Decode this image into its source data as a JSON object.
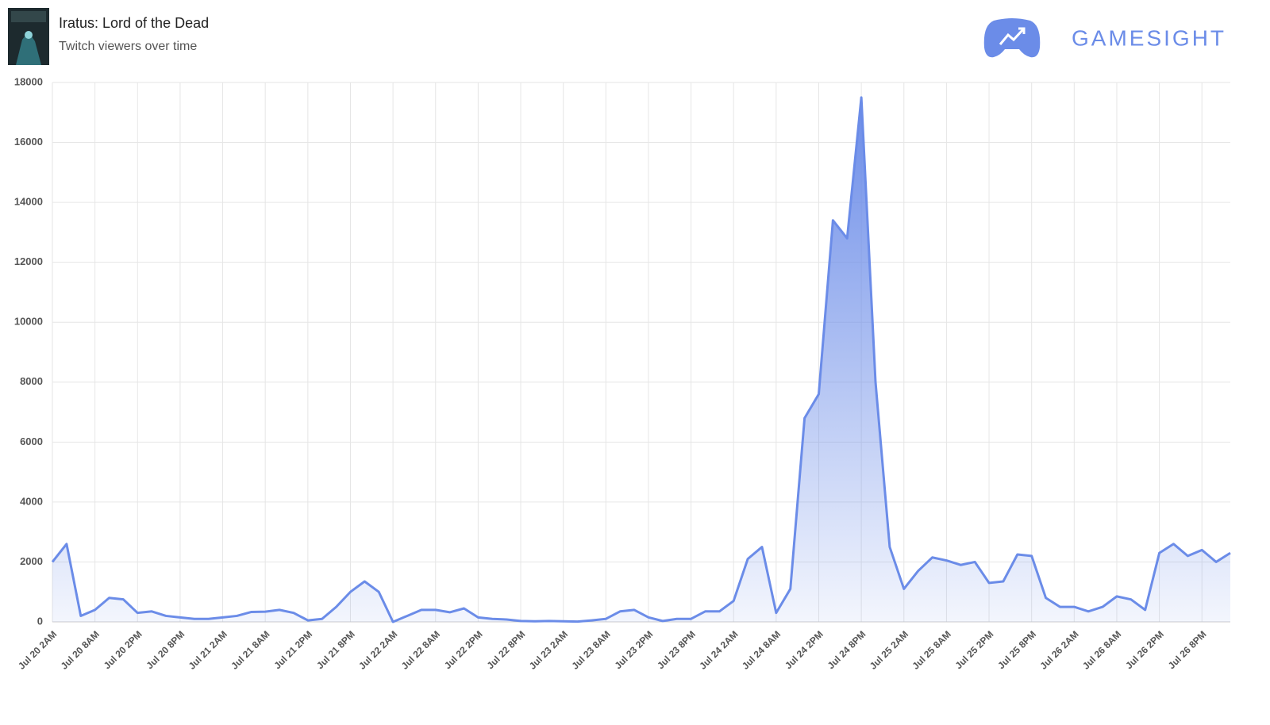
{
  "brand": "GAMESIGHT",
  "chart_data": {
    "type": "area",
    "title": "Iratus: Lord of the Dead",
    "subtitle": "Twitch viewers over time",
    "categories": [
      "Jul 20 2AM",
      null,
      null,
      "Jul 20 8AM",
      null,
      null,
      "Jul 20 2PM",
      null,
      null,
      "Jul 20 8PM",
      null,
      null,
      "Jul 21 2AM",
      null,
      null,
      "Jul 21 8AM",
      null,
      null,
      "Jul 21 2PM",
      null,
      null,
      "Jul 21 8PM",
      null,
      null,
      "Jul 22 2AM",
      null,
      null,
      "Jul 22 8AM",
      null,
      null,
      "Jul 22 2PM",
      null,
      null,
      "Jul 22 8PM",
      null,
      null,
      "Jul 23 2AM",
      null,
      null,
      "Jul 23 8AM",
      null,
      null,
      "Jul 23 2PM",
      null,
      null,
      "Jul 23 8PM",
      null,
      null,
      "Jul 24 2AM",
      null,
      null,
      "Jul 24 8AM",
      null,
      null,
      "Jul 24 2PM",
      null,
      null,
      "Jul 24 8PM",
      null,
      null,
      "Jul 25 2AM",
      null,
      null,
      "Jul 25 8AM",
      null,
      null,
      "Jul 25 2PM",
      null,
      null,
      "Jul 25 8PM",
      null,
      null,
      "Jul 26 2AM",
      null,
      null,
      "Jul 26 8AM",
      null,
      null,
      "Jul 26 2PM",
      null,
      null,
      "Jul 26 8PM",
      null,
      null
    ],
    "values": [
      2000,
      2600,
      200,
      400,
      800,
      750,
      300,
      350,
      200,
      150,
      100,
      100,
      150,
      200,
      330,
      340,
      400,
      300,
      50,
      100,
      500,
      1000,
      1350,
      1000,
      0,
      200,
      400,
      400,
      320,
      450,
      150,
      100,
      80,
      30,
      20,
      30,
      20,
      10,
      50,
      100,
      350,
      400,
      150,
      30,
      100,
      100,
      350,
      350,
      700,
      2100,
      2500,
      300,
      1100,
      6800,
      7600,
      13400,
      12800,
      17500,
      8000,
      2500,
      1100,
      1700,
      2150,
      2050,
      1900,
      2000,
      1300,
      1350,
      2250,
      2200,
      800,
      500,
      500,
      350,
      500,
      850,
      750,
      400,
      2300,
      2600,
      2200,
      2400,
      2000,
      2300
    ],
    "color": "#6b8ce8",
    "ylim": [
      0,
      18000
    ],
    "yticks": [
      0,
      2000,
      4000,
      6000,
      8000,
      10000,
      12000,
      14000,
      16000,
      18000
    ],
    "grid": true
  }
}
